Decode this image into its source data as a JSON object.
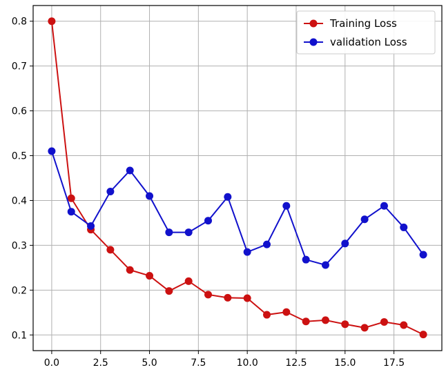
{
  "chart_data": {
    "type": "line",
    "title": "",
    "xlabel": "",
    "ylabel": "",
    "xlim": [
      -0.95,
      19.95
    ],
    "ylim": [
      0.065,
      0.835
    ],
    "grid": true,
    "legend_position": "top-right",
    "x_ticks": [
      0.0,
      2.5,
      5.0,
      7.5,
      10.0,
      12.5,
      15.0,
      17.5
    ],
    "x_tick_labels": [
      "0.0",
      "2.5",
      "5.0",
      "7.5",
      "10.0",
      "12.5",
      "15.0",
      "17.5"
    ],
    "y_ticks": [
      0.1,
      0.2,
      0.3,
      0.4,
      0.5,
      0.6,
      0.7,
      0.8
    ],
    "y_tick_labels": [
      "0.1",
      "0.2",
      "0.3",
      "0.4",
      "0.5",
      "0.6",
      "0.7",
      "0.8"
    ],
    "x": [
      0,
      1,
      2,
      3,
      4,
      5,
      6,
      7,
      8,
      9,
      10,
      11,
      12,
      13,
      14,
      15,
      16,
      17,
      18,
      19
    ],
    "series": [
      {
        "name": "Training Loss",
        "color": "#cc1111",
        "values": [
          0.8,
          0.405,
          0.335,
          0.29,
          0.245,
          0.232,
          0.198,
          0.22,
          0.19,
          0.183,
          0.182,
          0.145,
          0.151,
          0.13,
          0.133,
          0.124,
          0.116,
          0.129,
          0.122,
          0.101
        ]
      },
      {
        "name": "validation Loss",
        "color": "#1111cc",
        "values": [
          0.51,
          0.375,
          0.343,
          0.42,
          0.467,
          0.41,
          0.329,
          0.329,
          0.355,
          0.408,
          0.285,
          0.302,
          0.388,
          0.268,
          0.256,
          0.304,
          0.358,
          0.388,
          0.34,
          0.279
        ]
      }
    ]
  }
}
